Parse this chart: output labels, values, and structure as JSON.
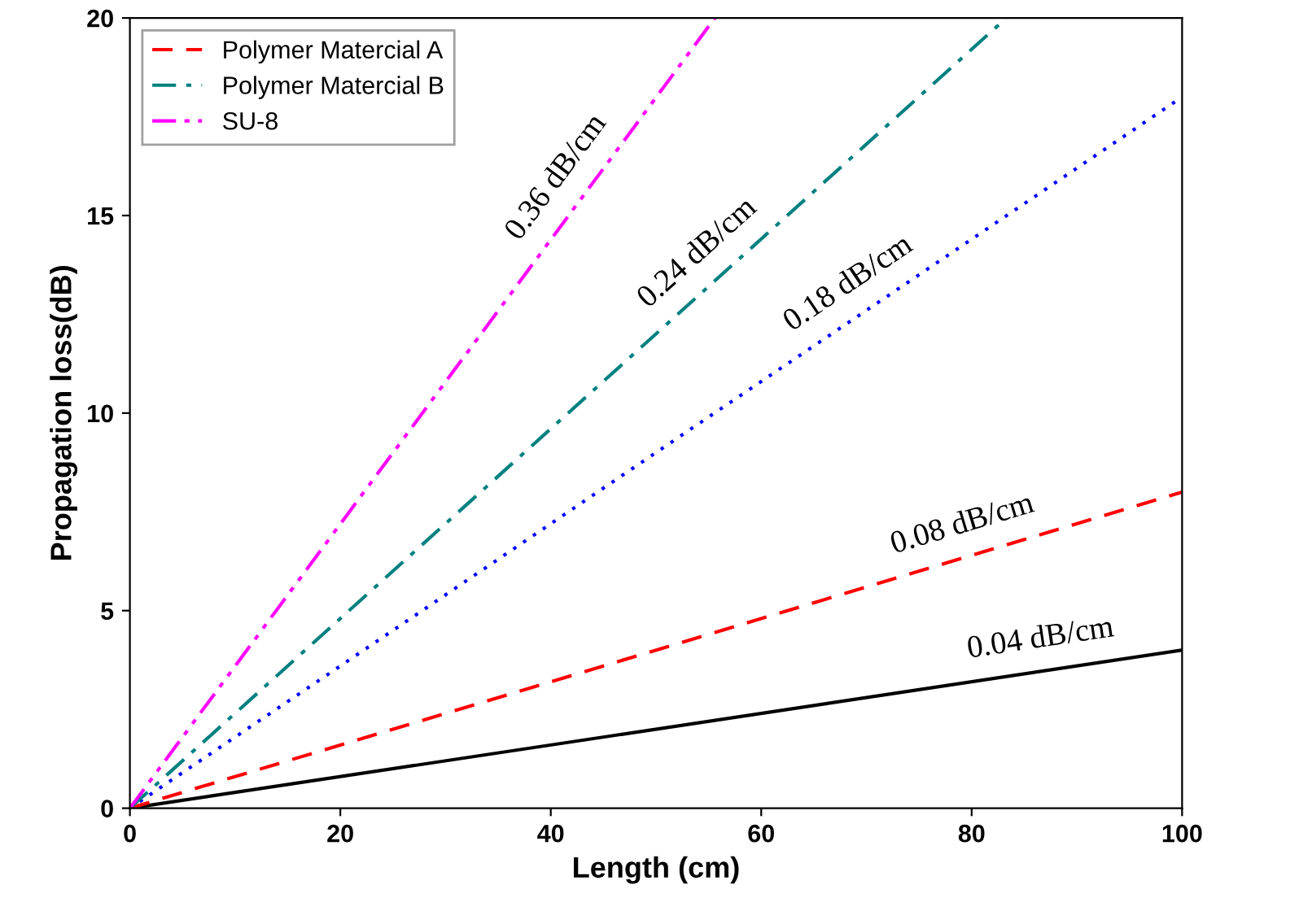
{
  "chart_data": {
    "type": "line",
    "xlabel": "Length (cm)",
    "ylabel": "Propagation loss(dB)",
    "xlim": [
      0,
      100
    ],
    "xticks": [
      0,
      20,
      40,
      60,
      80,
      100
    ],
    "ylim": [
      0,
      20
    ],
    "yticks": [
      0,
      5,
      10,
      15,
      20
    ],
    "grid": false,
    "legend": "top left",
    "marker": "none",
    "series": [
      {
        "color": "#000000",
        "line_style": "solid",
        "x": [
          0,
          100
        ],
        "values": [
          0,
          4
        ]
      },
      {
        "name": "Polymer Matercial A",
        "color": "#ff0000",
        "line_style": "dashed",
        "x": [
          0,
          100
        ],
        "values": [
          0,
          8
        ]
      },
      {
        "color": "#0000ff",
        "line_style": "dotted",
        "x": [
          0,
          100
        ],
        "values": [
          0,
          18
        ]
      },
      {
        "name": "Polymer Matercial B",
        "color": "#008080",
        "line_style": "dashdot",
        "x": [
          0,
          83.3
        ],
        "values": [
          0,
          20
        ]
      },
      {
        "name": "SU-8",
        "color": "#ff00ff",
        "line_style": "dashdotdot",
        "x": [
          0,
          55.6
        ],
        "values": [
          0,
          20
        ]
      }
    ],
    "annotations": [
      {
        "text": "0.36 dB/cm",
        "x": 43,
        "y": 15.48
      },
      {
        "text": "0.24 dB/cm",
        "x": 56,
        "y": 13.44
      },
      {
        "text": "0.18 dB/cm",
        "x": 70,
        "y": 12.6
      },
      {
        "text": "0.08 dB/cm",
        "x": 80,
        "y": 6.4
      },
      {
        "text": "0.04 dB/cm",
        "x": 87,
        "y": 3.48
      }
    ]
  }
}
